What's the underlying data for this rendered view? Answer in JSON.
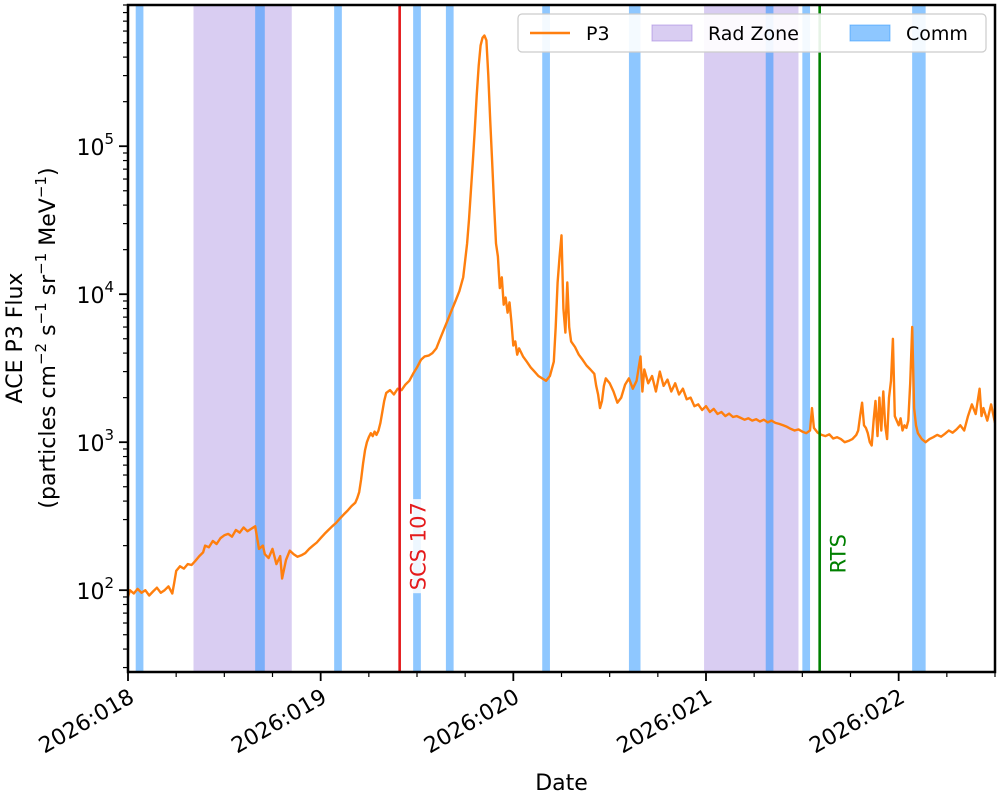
{
  "chart_data": {
    "type": "line",
    "title": "",
    "xlabel": "Date",
    "ylabel_line1": "ACE P3 Flux",
    "ylabel_line2_parts": {
      "prefix": "(particles cm",
      "exp1": "−2",
      "mid1": " s",
      "exp2": "−1",
      "mid2": " sr",
      "exp3": "−1",
      "suffix": " MeV",
      "exp4": "−1",
      "close": ")"
    },
    "y_scale": "log",
    "xlim": [
      0,
      4.5
    ],
    "ylim": [
      28,
      900000
    ],
    "x_ticks": [
      {
        "x": 0,
        "label": "2026:018"
      },
      {
        "x": 1,
        "label": "2026:019"
      },
      {
        "x": 2,
        "label": "2026:020"
      },
      {
        "x": 3,
        "label": "2026:021"
      },
      {
        "x": 4,
        "label": "2026:022"
      }
    ],
    "x_minor_step": 0.25,
    "y_ticks": [
      {
        "value": 100,
        "base": "10",
        "exp": "2"
      },
      {
        "value": 1000,
        "base": "10",
        "exp": "3"
      },
      {
        "value": 10000,
        "base": "10",
        "exp": "4"
      },
      {
        "value": 100000,
        "base": "10",
        "exp": "5"
      }
    ],
    "legend": {
      "placement": "top-right",
      "entries": [
        {
          "label": "P3",
          "kind": "line",
          "color": "#ff7f0e"
        },
        {
          "label": "Rad Zone",
          "kind": "patch",
          "color": "#9370db"
        },
        {
          "label": "Comm",
          "kind": "patch",
          "color": "#1e90ff"
        }
      ]
    },
    "rad_zones": [
      [
        0.34,
        0.85
      ],
      [
        2.99,
        3.48
      ]
    ],
    "comm_passes": [
      [
        0.04,
        0.08
      ],
      [
        0.66,
        0.71
      ],
      [
        1.07,
        1.11
      ],
      [
        1.48,
        1.52
      ],
      [
        1.65,
        1.69
      ],
      [
        2.15,
        2.19
      ],
      [
        2.6,
        2.66
      ],
      [
        3.31,
        3.35
      ],
      [
        3.5,
        3.54
      ],
      [
        4.07,
        4.14
      ]
    ],
    "events": [
      {
        "label": "SCS 107",
        "x": 1.41,
        "color": "#e41a1c",
        "text_at_y": 100
      },
      {
        "label": "RTS",
        "x": 3.59,
        "color": "#008000",
        "text_at_y": 130
      }
    ],
    "series": [
      {
        "name": "P3",
        "color": "#ff7f0e",
        "points": [
          [
            0.0,
            90
          ],
          [
            0.01,
            100
          ],
          [
            0.03,
            95
          ],
          [
            0.05,
            102
          ],
          [
            0.07,
            96
          ],
          [
            0.09,
            100
          ],
          [
            0.11,
            92
          ],
          [
            0.13,
            98
          ],
          [
            0.15,
            104
          ],
          [
            0.17,
            96
          ],
          [
            0.19,
            100
          ],
          [
            0.21,
            106
          ],
          [
            0.23,
            95
          ],
          [
            0.24,
            112
          ],
          [
            0.25,
            135
          ],
          [
            0.27,
            145
          ],
          [
            0.29,
            140
          ],
          [
            0.31,
            150
          ],
          [
            0.33,
            148
          ],
          [
            0.35,
            158
          ],
          [
            0.37,
            170
          ],
          [
            0.39,
            180
          ],
          [
            0.4,
            200
          ],
          [
            0.42,
            195
          ],
          [
            0.44,
            215
          ],
          [
            0.46,
            205
          ],
          [
            0.48,
            225
          ],
          [
            0.5,
            235
          ],
          [
            0.52,
            240
          ],
          [
            0.54,
            230
          ],
          [
            0.56,
            255
          ],
          [
            0.58,
            245
          ],
          [
            0.6,
            265
          ],
          [
            0.62,
            250
          ],
          [
            0.64,
            260
          ],
          [
            0.66,
            270
          ],
          [
            0.68,
            190
          ],
          [
            0.7,
            200
          ],
          [
            0.71,
            175
          ],
          [
            0.73,
            165
          ],
          [
            0.75,
            190
          ],
          [
            0.77,
            150
          ],
          [
            0.79,
            170
          ],
          [
            0.8,
            120
          ],
          [
            0.82,
            160
          ],
          [
            0.84,
            185
          ],
          [
            0.86,
            175
          ],
          [
            0.88,
            168
          ],
          [
            0.9,
            172
          ],
          [
            0.92,
            178
          ],
          [
            0.94,
            190
          ],
          [
            0.96,
            200
          ],
          [
            0.98,
            210
          ],
          [
            1.0,
            225
          ],
          [
            1.02,
            240
          ],
          [
            1.04,
            255
          ],
          [
            1.06,
            270
          ],
          [
            1.08,
            285
          ],
          [
            1.1,
            305
          ],
          [
            1.12,
            325
          ],
          [
            1.14,
            345
          ],
          [
            1.16,
            370
          ],
          [
            1.18,
            390
          ],
          [
            1.19,
            420
          ],
          [
            1.2,
            460
          ],
          [
            1.21,
            560
          ],
          [
            1.22,
            720
          ],
          [
            1.23,
            880
          ],
          [
            1.24,
            1000
          ],
          [
            1.25,
            1080
          ],
          [
            1.26,
            1150
          ],
          [
            1.27,
            1100
          ],
          [
            1.28,
            1180
          ],
          [
            1.29,
            1120
          ],
          [
            1.3,
            1200
          ],
          [
            1.31,
            1350
          ],
          [
            1.32,
            1600
          ],
          [
            1.33,
            1900
          ],
          [
            1.34,
            2150
          ],
          [
            1.36,
            2250
          ],
          [
            1.38,
            2100
          ],
          [
            1.4,
            2300
          ],
          [
            1.42,
            2250
          ],
          [
            1.44,
            2450
          ],
          [
            1.46,
            2600
          ],
          [
            1.48,
            2900
          ],
          [
            1.5,
            3200
          ],
          [
            1.52,
            3600
          ],
          [
            1.54,
            3800
          ],
          [
            1.56,
            3850
          ],
          [
            1.58,
            4000
          ],
          [
            1.6,
            4300
          ],
          [
            1.62,
            5000
          ],
          [
            1.64,
            5800
          ],
          [
            1.66,
            6700
          ],
          [
            1.68,
            7800
          ],
          [
            1.7,
            9000
          ],
          [
            1.72,
            10500
          ],
          [
            1.74,
            13000
          ],
          [
            1.75,
            17000
          ],
          [
            1.76,
            22000
          ],
          [
            1.77,
            32000
          ],
          [
            1.78,
            50000
          ],
          [
            1.79,
            80000
          ],
          [
            1.8,
            130000
          ],
          [
            1.81,
            220000
          ],
          [
            1.82,
            350000
          ],
          [
            1.83,
            480000
          ],
          [
            1.84,
            540000
          ],
          [
            1.85,
            560000
          ],
          [
            1.86,
            520000
          ],
          [
            1.87,
            300000
          ],
          [
            1.88,
            150000
          ],
          [
            1.89,
            80000
          ],
          [
            1.9,
            40000
          ],
          [
            1.91,
            22000
          ],
          [
            1.92,
            18000
          ],
          [
            1.93,
            11000
          ],
          [
            1.94,
            13000
          ],
          [
            1.95,
            8500
          ],
          [
            1.96,
            9500
          ],
          [
            1.97,
            7500
          ],
          [
            1.98,
            8800
          ],
          [
            1.99,
            6500
          ],
          [
            2.0,
            4500
          ],
          [
            2.01,
            4800
          ],
          [
            2.02,
            3900
          ],
          [
            2.03,
            4300
          ],
          [
            2.05,
            3800
          ],
          [
            2.07,
            3500
          ],
          [
            2.09,
            3200
          ],
          [
            2.11,
            3000
          ],
          [
            2.13,
            2800
          ],
          [
            2.15,
            2700
          ],
          [
            2.17,
            2600
          ],
          [
            2.19,
            2800
          ],
          [
            2.21,
            3500
          ],
          [
            2.22,
            6000
          ],
          [
            2.23,
            12000
          ],
          [
            2.24,
            18000
          ],
          [
            2.25,
            25000
          ],
          [
            2.26,
            8000
          ],
          [
            2.27,
            5500
          ],
          [
            2.28,
            12000
          ],
          [
            2.29,
            6000
          ],
          [
            2.3,
            4800
          ],
          [
            2.32,
            4400
          ],
          [
            2.34,
            3900
          ],
          [
            2.36,
            3600
          ],
          [
            2.38,
            3300
          ],
          [
            2.4,
            3100
          ],
          [
            2.42,
            2900
          ],
          [
            2.43,
            2400
          ],
          [
            2.44,
            2100
          ],
          [
            2.45,
            1700
          ],
          [
            2.46,
            1900
          ],
          [
            2.47,
            2400
          ],
          [
            2.48,
            2700
          ],
          [
            2.5,
            2500
          ],
          [
            2.52,
            2200
          ],
          [
            2.54,
            1850
          ],
          [
            2.56,
            2000
          ],
          [
            2.58,
            2450
          ],
          [
            2.6,
            2700
          ],
          [
            2.62,
            2300
          ],
          [
            2.64,
            2600
          ],
          [
            2.66,
            3800
          ],
          [
            2.67,
            2200
          ],
          [
            2.68,
            3100
          ],
          [
            2.7,
            2500
          ],
          [
            2.72,
            2800
          ],
          [
            2.74,
            2200
          ],
          [
            2.76,
            3000
          ],
          [
            2.78,
            2400
          ],
          [
            2.8,
            2650
          ],
          [
            2.82,
            2200
          ],
          [
            2.84,
            2500
          ],
          [
            2.86,
            2100
          ],
          [
            2.88,
            2300
          ],
          [
            2.9,
            1950
          ],
          [
            2.92,
            2000
          ],
          [
            2.94,
            1750
          ],
          [
            2.96,
            1800
          ],
          [
            2.98,
            1650
          ],
          [
            3.0,
            1750
          ],
          [
            3.02,
            1600
          ],
          [
            3.04,
            1680
          ],
          [
            3.06,
            1550
          ],
          [
            3.08,
            1600
          ],
          [
            3.1,
            1500
          ],
          [
            3.12,
            1560
          ],
          [
            3.14,
            1480
          ],
          [
            3.16,
            1500
          ],
          [
            3.18,
            1460
          ],
          [
            3.2,
            1420
          ],
          [
            3.22,
            1450
          ],
          [
            3.24,
            1400
          ],
          [
            3.26,
            1430
          ],
          [
            3.28,
            1380
          ],
          [
            3.3,
            1420
          ],
          [
            3.32,
            1360
          ],
          [
            3.34,
            1400
          ],
          [
            3.36,
            1350
          ],
          [
            3.38,
            1330
          ],
          [
            3.4,
            1300
          ],
          [
            3.42,
            1270
          ],
          [
            3.44,
            1230
          ],
          [
            3.46,
            1200
          ],
          [
            3.48,
            1220
          ],
          [
            3.5,
            1180
          ],
          [
            3.52,
            1150
          ],
          [
            3.54,
            1200
          ],
          [
            3.55,
            1700
          ],
          [
            3.56,
            1250
          ],
          [
            3.58,
            1160
          ],
          [
            3.6,
            1120
          ],
          [
            3.62,
            1100
          ],
          [
            3.64,
            1130
          ],
          [
            3.66,
            1060
          ],
          [
            3.68,
            1080
          ],
          [
            3.7,
            1050
          ],
          [
            3.72,
            1000
          ],
          [
            3.74,
            1020
          ],
          [
            3.76,
            1050
          ],
          [
            3.78,
            1120
          ],
          [
            3.79,
            1200
          ],
          [
            3.8,
            1500
          ],
          [
            3.81,
            1850
          ],
          [
            3.82,
            1300
          ],
          [
            3.83,
            1250
          ],
          [
            3.84,
            1150
          ],
          [
            3.85,
            1000
          ],
          [
            3.86,
            950
          ],
          [
            3.87,
            1400
          ],
          [
            3.88,
            1900
          ],
          [
            3.89,
            1100
          ],
          [
            3.9,
            2000
          ],
          [
            3.91,
            1200
          ],
          [
            3.92,
            2200
          ],
          [
            3.93,
            1300
          ],
          [
            3.94,
            1050
          ],
          [
            3.95,
            2000
          ],
          [
            3.96,
            2600
          ],
          [
            3.97,
            5000
          ],
          [
            3.98,
            1500
          ],
          [
            3.99,
            1400
          ],
          [
            4.0,
            1300
          ],
          [
            4.01,
            1450
          ],
          [
            4.02,
            1200
          ],
          [
            4.03,
            1300
          ],
          [
            4.04,
            1250
          ],
          [
            4.05,
            1400
          ],
          [
            4.06,
            2500
          ],
          [
            4.07,
            6000
          ],
          [
            4.08,
            1700
          ],
          [
            4.09,
            1300
          ],
          [
            4.1,
            1150
          ],
          [
            4.12,
            1050
          ],
          [
            4.14,
            1000
          ],
          [
            4.16,
            1050
          ],
          [
            4.18,
            1080
          ],
          [
            4.2,
            1120
          ],
          [
            4.22,
            1090
          ],
          [
            4.24,
            1140
          ],
          [
            4.26,
            1200
          ],
          [
            4.28,
            1160
          ],
          [
            4.3,
            1220
          ],
          [
            4.32,
            1300
          ],
          [
            4.34,
            1200
          ],
          [
            4.36,
            1500
          ],
          [
            4.38,
            1800
          ],
          [
            4.4,
            1550
          ],
          [
            4.42,
            2300
          ],
          [
            4.43,
            1500
          ],
          [
            4.44,
            1700
          ],
          [
            4.46,
            1400
          ],
          [
            4.48,
            1800
          ],
          [
            4.5,
            1350
          ]
        ]
      }
    ]
  }
}
